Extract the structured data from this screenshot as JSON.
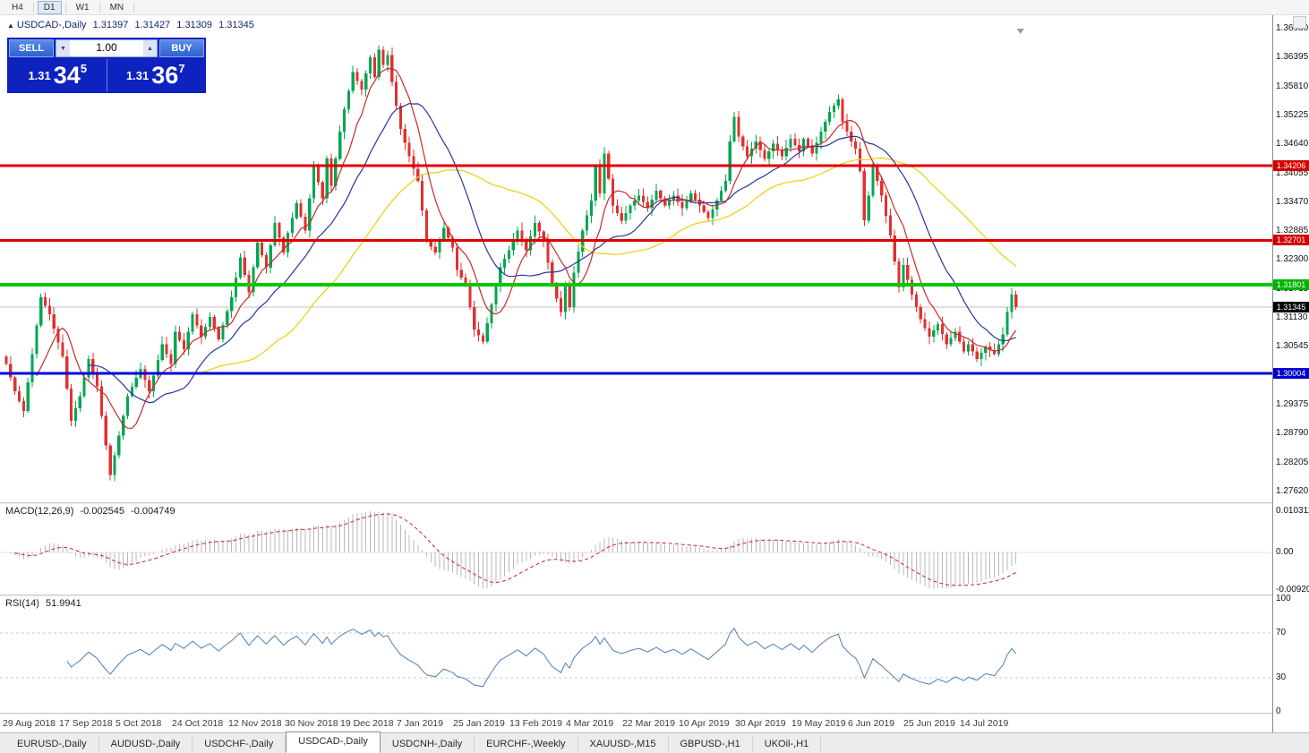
{
  "toolbar": {
    "timeframes": [
      {
        "label": "H4",
        "active": false
      },
      {
        "label": "D1",
        "active": true
      },
      {
        "label": "W1",
        "active": false
      },
      {
        "label": "MN",
        "active": false
      }
    ]
  },
  "chart_header": {
    "marker": "▲",
    "title": "USDCAD-,Daily",
    "open": "1.31397",
    "high": "1.31427",
    "low": "1.31309",
    "close": "1.31345"
  },
  "trade_panel": {
    "sell_label": "SELL",
    "buy_label": "BUY",
    "volume": "1.00",
    "spin_down": "▼",
    "spin_up": "▲",
    "sell_price_small": "1.31",
    "sell_price_big": "34",
    "sell_price_sup": "5",
    "buy_price_small": "1.31",
    "buy_price_big": "36",
    "buy_price_sup": "7"
  },
  "price_axis": {
    "labels": [
      "1.36980",
      "1.36395",
      "1.35810",
      "1.35225",
      "1.34640",
      "1.34055",
      "1.33470",
      "1.32885",
      "1.32300",
      "1.31715",
      "1.31130",
      "1.30545",
      "1.29960",
      "1.29375",
      "1.28790",
      "1.28205",
      "1.27620"
    ],
    "tags": [
      {
        "label": "1.34206",
        "price": 1.34206,
        "color": "#d40000"
      },
      {
        "label": "1.32701",
        "price": 1.32701,
        "color": "#d40000"
      },
      {
        "label": "1.31801",
        "price": 1.31801,
        "color": "#00b300"
      },
      {
        "label": "1.31345",
        "price": 1.31345,
        "color": "#000000"
      },
      {
        "label": "1.30004",
        "price": 1.30004,
        "color": "#0000cc"
      }
    ]
  },
  "date_axis": [
    "29 Aug 2018",
    "17 Sep 2018",
    "5 Oct 2018",
    "24 Oct 2018",
    "12 Nov 2018",
    "30 Nov 2018",
    "19 Dec 2018",
    "7 Jan 2019",
    "25 Jan 2019",
    "13 Feb 2019",
    "4 Mar 2019",
    "22 Mar 2019",
    "10 Apr 2019",
    "30 Apr 2019",
    "19 May 2019",
    "6 Jun 2019",
    "25 Jun 2019",
    "14 Jul 2019"
  ],
  "macd_panel": {
    "label": "MACD(12,26,9)",
    "value1": "-0.002545",
    "value2": "-0.004749",
    "axis_labels": [
      "0.010311",
      "0.00",
      "-0.009203"
    ]
  },
  "rsi_panel": {
    "label": "RSI(14)",
    "value": "51.9941",
    "axis_labels": [
      "100",
      "70",
      "30",
      "0"
    ]
  },
  "tabs": {
    "active_index": 3,
    "items": [
      "EURUSD-,Daily",
      "AUDUSD-,Daily",
      "USDCHF-,Daily",
      "USDCAD-,Daily",
      "USDCNH-,Daily",
      "EURCHF-,Weekly",
      "XAUUSD-,M15",
      "GBPUSD-,H1",
      "UKOil-,H1"
    ]
  },
  "chart_data": {
    "type": "candlestick",
    "symbol": "USDCAD-",
    "timeframe": "Daily",
    "title": "USDCAD-,Daily",
    "current_ohlc": {
      "open": 1.31397,
      "high": 1.31427,
      "low": 1.31309,
      "close": 1.31345
    },
    "y_axis": {
      "top": 1.3698,
      "bottom": 1.2762,
      "tick_step": 0.00585
    },
    "n_candles": 234,
    "price_waypoints": [
      [
        0,
        1.302
      ],
      [
        2,
        1.2965
      ],
      [
        4,
        1.2925
      ],
      [
        6,
        1.304
      ],
      [
        8,
        1.3155
      ],
      [
        10,
        1.312
      ],
      [
        13,
        1.3035
      ],
      [
        15,
        1.2905
      ],
      [
        17,
        1.2955
      ],
      [
        19,
        1.303
      ],
      [
        21,
        1.2975
      ],
      [
        24,
        1.2795
      ],
      [
        26,
        1.2875
      ],
      [
        28,
        1.2955
      ],
      [
        31,
        1.301
      ],
      [
        33,
        1.2965
      ],
      [
        36,
        1.306
      ],
      [
        38,
        1.302
      ],
      [
        39,
        1.3085
      ],
      [
        41,
        1.305
      ],
      [
        43,
        1.312
      ],
      [
        45,
        1.3075
      ],
      [
        47,
        1.3115
      ],
      [
        49,
        1.307
      ],
      [
        52,
        1.3155
      ],
      [
        54,
        1.3235
      ],
      [
        56,
        1.3165
      ],
      [
        58,
        1.3265
      ],
      [
        60,
        1.3215
      ],
      [
        62,
        1.3305
      ],
      [
        64,
        1.3245
      ],
      [
        65,
        1.3285
      ],
      [
        67,
        1.3345
      ],
      [
        69,
        1.329
      ],
      [
        71,
        1.342
      ],
      [
        73,
        1.3355
      ],
      [
        74,
        1.3435
      ],
      [
        75,
        1.338
      ],
      [
        77,
        1.349
      ],
      [
        78,
        1.3535
      ],
      [
        80,
        1.361
      ],
      [
        82,
        1.3575
      ],
      [
        84,
        1.364
      ],
      [
        85,
        1.36
      ],
      [
        86,
        1.3655
      ],
      [
        87,
        1.3625
      ],
      [
        88,
        1.3645
      ],
      [
        89,
        1.359
      ],
      [
        91,
        1.3495
      ],
      [
        93,
        1.344
      ],
      [
        95,
        1.339
      ],
      [
        97,
        1.327
      ],
      [
        99,
        1.3245
      ],
      [
        101,
        1.3295
      ],
      [
        103,
        1.3255
      ],
      [
        104,
        1.321
      ],
      [
        106,
        1.318
      ],
      [
        108,
        1.309
      ],
      [
        110,
        1.3065
      ],
      [
        112,
        1.314
      ],
      [
        114,
        1.3215
      ],
      [
        116,
        1.325
      ],
      [
        118,
        1.329
      ],
      [
        120,
        1.325
      ],
      [
        122,
        1.3305
      ],
      [
        124,
        1.327
      ],
      [
        126,
        1.318
      ],
      [
        128,
        1.3125
      ],
      [
        129,
        1.318
      ],
      [
        130,
        1.3135
      ],
      [
        131,
        1.3205
      ],
      [
        133,
        1.329
      ],
      [
        135,
        1.335
      ],
      [
        136,
        1.342
      ],
      [
        137,
        1.3365
      ],
      [
        138,
        1.3445
      ],
      [
        139,
        1.3395
      ],
      [
        140,
        1.334
      ],
      [
        142,
        1.331
      ],
      [
        144,
        1.334
      ],
      [
        146,
        1.336
      ],
      [
        148,
        1.3335
      ],
      [
        150,
        1.337
      ],
      [
        152,
        1.334
      ],
      [
        154,
        1.336
      ],
      [
        156,
        1.3335
      ],
      [
        158,
        1.3365
      ],
      [
        160,
        1.334
      ],
      [
        162,
        1.3315
      ],
      [
        164,
        1.335
      ],
      [
        166,
        1.339
      ],
      [
        167,
        1.347
      ],
      [
        168,
        1.352
      ],
      [
        169,
        1.348
      ],
      [
        171,
        1.344
      ],
      [
        173,
        1.347
      ],
      [
        175,
        1.3435
      ],
      [
        177,
        1.3465
      ],
      [
        179,
        1.344
      ],
      [
        181,
        1.3475
      ],
      [
        183,
        1.345
      ],
      [
        184,
        1.3475
      ],
      [
        186,
        1.3445
      ],
      [
        188,
        1.349
      ],
      [
        190,
        1.353
      ],
      [
        192,
        1.3555
      ],
      [
        193,
        1.351
      ],
      [
        195,
        1.347
      ],
      [
        196,
        1.3455
      ],
      [
        197,
        1.341
      ],
      [
        198,
        1.331
      ],
      [
        199,
        1.336
      ],
      [
        200,
        1.342
      ],
      [
        202,
        1.336
      ],
      [
        204,
        1.328
      ],
      [
        206,
        1.3175
      ],
      [
        207,
        1.322
      ],
      [
        209,
        1.316
      ],
      [
        211,
        1.311
      ],
      [
        213,
        1.3075
      ],
      [
        215,
        1.31
      ],
      [
        217,
        1.306
      ],
      [
        219,
        1.3085
      ],
      [
        221,
        1.3045
      ],
      [
        222,
        1.306
      ],
      [
        224,
        1.303
      ],
      [
        226,
        1.3055
      ],
      [
        228,
        1.304
      ],
      [
        230,
        1.308
      ],
      [
        231,
        1.3125
      ],
      [
        232,
        1.316
      ],
      [
        233,
        1.31345
      ]
    ],
    "hlines": [
      {
        "price": 1.34206,
        "color": "#e00000",
        "width": 3
      },
      {
        "price": 1.32701,
        "color": "#e00000",
        "width": 3
      },
      {
        "price": 1.31801,
        "color": "#00ca00",
        "width": 4
      },
      {
        "price": 1.30004,
        "color": "#0000d8",
        "width": 3
      }
    ],
    "bid_line": {
      "price": 1.31345,
      "color": "#c0c0c0"
    },
    "colors": {
      "up": "#00a651",
      "down": "#e03030",
      "ma_fast": "#c92a2a",
      "ma_mid": "#27359c",
      "ma_slow": "#f2cc0c",
      "macd_hist": "#b8b8b8",
      "macd_signal": "#cc2020",
      "rsi_line": "#4a7ebb"
    },
    "moving_averages": [
      {
        "period": 8,
        "color_key": "ma_fast"
      },
      {
        "period": 20,
        "color_key": "ma_mid"
      },
      {
        "period": 45,
        "color_key": "ma_slow"
      }
    ],
    "macd": {
      "fast": 12,
      "slow": 26,
      "signal": 9,
      "current_macd": -0.002545,
      "current_signal": -0.004749
    },
    "rsi": {
      "period": 14,
      "current": 51.9941,
      "levels": [
        70,
        30
      ]
    }
  }
}
